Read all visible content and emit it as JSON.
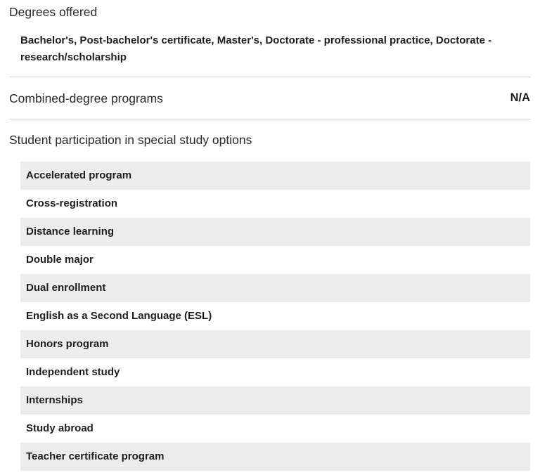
{
  "degrees": {
    "heading": "Degrees offered",
    "value": "Bachelor's, Post-bachelor's certificate, Master's, Doctorate - professional practice, Doctorate - research/scholarship"
  },
  "combined": {
    "label": "Combined-degree programs",
    "value": "N/A"
  },
  "study_options": {
    "heading": "Student participation in special study options",
    "items": [
      "Accelerated program",
      "Cross-registration",
      "Distance learning",
      "Double major",
      "Dual enrollment",
      "English as a Second Language (ESL)",
      "Honors program",
      "Independent study",
      "Internships",
      "Study abroad",
      "Teacher certificate program"
    ]
  },
  "colors": {
    "stripe": "#ececec",
    "divider": "#cfcfcf",
    "text": "#222222"
  }
}
